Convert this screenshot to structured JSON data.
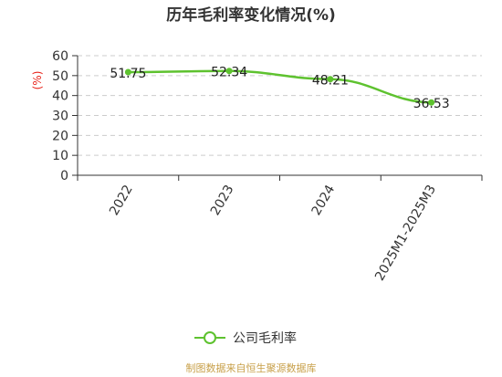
{
  "chart_data": {
    "type": "line",
    "title": "历年毛利率变化情况(%)",
    "ylabel": "(%)",
    "categories": [
      "2022",
      "2023",
      "2024",
      "2025M1-2025M3"
    ],
    "series": [
      {
        "name": "公司毛利率",
        "values": [
          51.75,
          52.34,
          48.21,
          36.53
        ],
        "labels": [
          "51.75",
          "52.34",
          "48.21",
          "36.53"
        ]
      }
    ],
    "ylim": [
      0,
      60
    ],
    "yticks": [
      0,
      10,
      20,
      30,
      40,
      50,
      60
    ],
    "grid": true,
    "legend_position": "bottom",
    "colors": {
      "series": "#5ec22f",
      "grid": "#cccccc",
      "axis": "#333333",
      "unit": "#e8241b",
      "source": "#c8a04a"
    }
  },
  "footer": {
    "source": "制图数据来自恒生聚源数据库"
  }
}
